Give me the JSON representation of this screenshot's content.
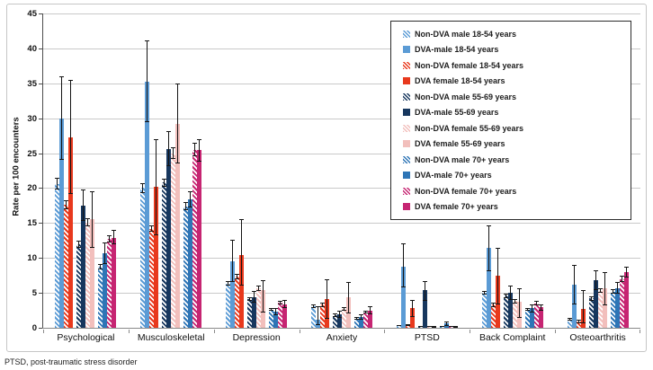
{
  "figure": {
    "footnote": "PTSD, post-traumatic stress disorder"
  },
  "chart_data": {
    "type": "bar",
    "title": "",
    "xlabel": "",
    "ylabel": "Rate per 100 encounters",
    "ylim": [
      0,
      45
    ],
    "ytick_interval": 5,
    "grid": true,
    "legend_position": "upper-right-inside",
    "error_bars": true,
    "categories": [
      "Psychological",
      "Musculoskeletal",
      "Depression",
      "Anxiety",
      "PTSD",
      "Back Complaint",
      "Osteoarthritis"
    ],
    "series": [
      {
        "name": "Non-DVA male 18-54 years",
        "pattern": "hatched",
        "color": "#5B9BD5",
        "values": [
          20.6,
          20.0,
          6.3,
          3.1,
          0.3,
          5.0,
          1.2
        ],
        "errors": [
          [
            19.8,
            21.5
          ],
          [
            19.3,
            20.7
          ],
          [
            6.0,
            6.7
          ],
          [
            2.8,
            3.4
          ],
          [
            0.2,
            0.4
          ],
          [
            4.7,
            5.3
          ],
          [
            1.0,
            1.4
          ]
        ]
      },
      {
        "name": "DVA-male 18-54 years",
        "pattern": "solid",
        "color": "#5B9BD5",
        "values": [
          30.0,
          35.2,
          9.5,
          1.1,
          8.7,
          11.4,
          6.2
        ],
        "errors": [
          [
            24.0,
            36.0
          ],
          [
            29.4,
            41.1
          ],
          [
            6.5,
            12.6
          ],
          [
            0.4,
            3.1
          ],
          [
            5.8,
            12.1
          ],
          [
            8.1,
            14.7
          ],
          [
            3.4,
            9.0
          ]
        ]
      },
      {
        "name": "Non-DVA female 18-54 years",
        "pattern": "hatched",
        "color": "#E8391D",
        "values": [
          17.6,
          14.2,
          7.3,
          3.3,
          0.4,
          3.3,
          0.9
        ],
        "errors": [
          [
            17.0,
            18.2
          ],
          [
            13.7,
            14.7
          ],
          [
            6.9,
            7.7
          ],
          [
            3.0,
            3.6
          ],
          [
            0.3,
            0.5
          ],
          [
            3.0,
            3.6
          ],
          [
            0.7,
            1.1
          ]
        ]
      },
      {
        "name": "DVA female 18-54 years",
        "pattern": "solid",
        "color": "#E8391D",
        "values": [
          27.3,
          20.2,
          10.4,
          4.1,
          2.8,
          7.4,
          2.7
        ],
        "errors": [
          [
            19.1,
            35.5
          ],
          [
            13.3,
            27.0
          ],
          [
            6.0,
            15.6
          ],
          [
            1.3,
            7.0
          ],
          [
            1.6,
            4.0
          ],
          [
            3.3,
            11.5
          ],
          [
            0.6,
            5.4
          ]
        ]
      },
      {
        "name": "Non-DVA male 55-69 years",
        "pattern": "hatched",
        "color": "#17375E",
        "values": [
          12.0,
          20.8,
          4.1,
          1.8,
          0.2,
          4.6,
          4.2
        ],
        "errors": [
          [
            11.5,
            12.5
          ],
          [
            20.2,
            21.4
          ],
          [
            3.8,
            4.4
          ],
          [
            1.6,
            2.0
          ],
          [
            0.1,
            0.3
          ],
          [
            4.3,
            4.9
          ],
          [
            3.9,
            4.5
          ]
        ]
      },
      {
        "name": "DVA-male 55-69 years",
        "pattern": "solid",
        "color": "#17375E",
        "values": [
          17.5,
          25.6,
          4.4,
          1.9,
          5.4,
          5.0,
          6.8
        ],
        "errors": [
          [
            15.3,
            19.8
          ],
          [
            23.2,
            28.1
          ],
          [
            3.6,
            5.3
          ],
          [
            1.4,
            2.5
          ],
          [
            3.9,
            6.7
          ],
          [
            4.0,
            6.0
          ],
          [
            5.4,
            8.2
          ]
        ]
      },
      {
        "name": "Non-DVA female 55-69 years",
        "pattern": "hatched",
        "color": "#F2BFBC",
        "values": [
          15.1,
          25.0,
          5.7,
          2.7,
          0.1,
          3.8,
          5.3
        ],
        "errors": [
          [
            14.5,
            15.7
          ],
          [
            24.2,
            25.8
          ],
          [
            5.3,
            6.1
          ],
          [
            2.4,
            3.0
          ],
          [
            0.1,
            0.2
          ],
          [
            3.5,
            4.1
          ],
          [
            5.0,
            5.7
          ]
        ]
      },
      {
        "name": "DVA female 55-69 years",
        "pattern": "solid",
        "color": "#F2BFBC",
        "values": [
          15.5,
          29.2,
          5.4,
          4.4,
          0.1,
          3.7,
          5.6
        ],
        "errors": [
          [
            11.5,
            19.5
          ],
          [
            23.5,
            35.0
          ],
          [
            2.2,
            6.8
          ],
          [
            2.1,
            6.6
          ],
          [
            0.0,
            0.2
          ],
          [
            1.4,
            5.7
          ],
          [
            3.2,
            8.0
          ]
        ]
      },
      {
        "name": "Non-DVA male 70+ years",
        "pattern": "hatched",
        "color": "#2E75B6",
        "values": [
          8.7,
          17.4,
          2.6,
          1.3,
          0.1,
          2.6,
          5.2
        ],
        "errors": [
          [
            8.3,
            9.1
          ],
          [
            16.8,
            18.0
          ],
          [
            2.4,
            2.8
          ],
          [
            1.1,
            1.5
          ],
          [
            0.1,
            0.2
          ],
          [
            2.4,
            2.8
          ],
          [
            4.9,
            5.5
          ]
        ]
      },
      {
        "name": "DVA-male 70+ years",
        "pattern": "solid",
        "color": "#2E75B6",
        "values": [
          10.7,
          18.4,
          2.3,
          1.5,
          0.6,
          2.8,
          5.7
        ],
        "errors": [
          [
            9.1,
            12.2
          ],
          [
            17.2,
            19.6
          ],
          [
            1.8,
            2.8
          ],
          [
            1.2,
            1.9
          ],
          [
            0.3,
            0.9
          ],
          [
            2.2,
            3.4
          ],
          [
            4.9,
            6.5
          ]
        ]
      },
      {
        "name": "Non-DVA female 70+ years",
        "pattern": "hatched",
        "color": "#C62572",
        "values": [
          12.7,
          25.5,
          3.6,
          2.2,
          0.1,
          3.5,
          7.0
        ],
        "errors": [
          [
            12.2,
            13.2
          ],
          [
            24.5,
            26.5
          ],
          [
            3.3,
            3.9
          ],
          [
            2.0,
            2.5
          ],
          [
            0.1,
            0.2
          ],
          [
            3.2,
            3.8
          ],
          [
            6.6,
            7.5
          ]
        ]
      },
      {
        "name": "DVA female 70+ years",
        "pattern": "solid",
        "color": "#C62572",
        "values": [
          12.9,
          25.4,
          3.4,
          2.5,
          0.1,
          2.9,
          8.0
        ],
        "errors": [
          [
            11.9,
            14.0
          ],
          [
            23.8,
            27.0
          ],
          [
            2.8,
            4.0
          ],
          [
            1.9,
            3.1
          ],
          [
            0.0,
            0.2
          ],
          [
            2.4,
            3.4
          ],
          [
            7.2,
            8.8
          ]
        ]
      }
    ],
    "footnote": "PTSD, post-traumatic stress disorder"
  }
}
